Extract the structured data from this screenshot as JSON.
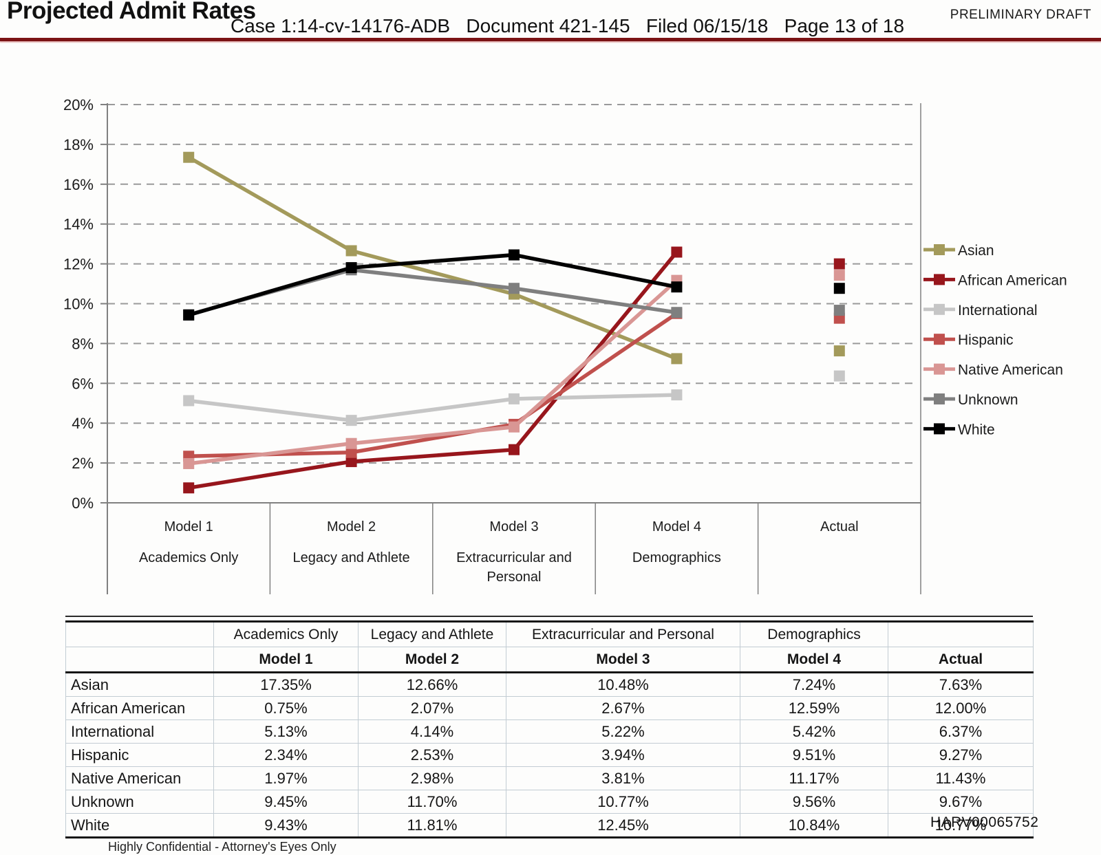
{
  "header": {
    "title": "Projected Admit Rates",
    "case_line": "Case 1:14-cv-14176-ADB   Document 421-145   Filed 06/15/18   Page 13 of 18",
    "draft_label": "PRELIMINARY DRAFT"
  },
  "footer": {
    "confidential_label": "Highly Confidential - Attorney's Eyes Only",
    "bates_number": "HARV00065752"
  },
  "chart_data": {
    "type": "line",
    "title": "",
    "xlabel": "",
    "ylabel": "",
    "ylim": [
      0,
      20
    ],
    "ytick_step": 2,
    "ytick_suffix": "%",
    "grid": "horizontal-dashed",
    "legend_position": "right",
    "categories": [
      {
        "label": "Model 1",
        "sub": [
          "Academics Only"
        ]
      },
      {
        "label": "Model 2",
        "sub": [
          "Legacy and Athlete"
        ]
      },
      {
        "label": "Model 3",
        "sub": [
          "Extracurricular and",
          "Personal"
        ]
      },
      {
        "label": "Model 4",
        "sub": [
          "Demographics"
        ]
      },
      {
        "label": "Actual",
        "sub": []
      }
    ],
    "series": [
      {
        "name": "Asian",
        "color": "#a39a5b",
        "values": [
          17.35,
          12.66,
          10.48,
          7.24
        ],
        "actual": 7.63
      },
      {
        "name": "African American",
        "color": "#97161c",
        "values": [
          0.75,
          2.07,
          2.67,
          12.59
        ],
        "actual": 12.0
      },
      {
        "name": "International",
        "color": "#c6c6c6",
        "values": [
          5.13,
          4.14,
          5.22,
          5.42
        ],
        "actual": 6.37
      },
      {
        "name": "Hispanic",
        "color": "#c0504d",
        "values": [
          2.34,
          2.53,
          3.94,
          9.51
        ],
        "actual": 9.27
      },
      {
        "name": "Native American",
        "color": "#d99694",
        "values": [
          1.97,
          2.98,
          3.81,
          11.17
        ],
        "actual": 11.43
      },
      {
        "name": "Unknown",
        "color": "#7f7f7f",
        "values": [
          9.45,
          11.7,
          10.77,
          9.56
        ],
        "actual": 9.67
      },
      {
        "name": "White",
        "color": "#000000",
        "values": [
          9.43,
          11.81,
          12.45,
          10.84
        ],
        "actual": 10.77
      }
    ]
  },
  "table": {
    "group_headers": [
      "",
      "Academics Only",
      "Legacy and Athlete",
      "Extracurricular and Personal",
      "Demographics",
      ""
    ],
    "col_headers": [
      "",
      "Model 1",
      "Model 2",
      "Model 3",
      "Model 4",
      "Actual"
    ],
    "rows": [
      {
        "label": "Asian",
        "values": [
          "17.35%",
          "12.66%",
          "10.48%",
          "7.24%",
          "7.63%"
        ]
      },
      {
        "label": "African American",
        "values": [
          "0.75%",
          "2.07%",
          "2.67%",
          "12.59%",
          "12.00%"
        ]
      },
      {
        "label": "International",
        "values": [
          "5.13%",
          "4.14%",
          "5.22%",
          "5.42%",
          "6.37%"
        ]
      },
      {
        "label": "Hispanic",
        "values": [
          "2.34%",
          "2.53%",
          "3.94%",
          "9.51%",
          "9.27%"
        ]
      },
      {
        "label": "Native American",
        "values": [
          "1.97%",
          "2.98%",
          "3.81%",
          "11.17%",
          "11.43%"
        ]
      },
      {
        "label": "Unknown",
        "values": [
          "9.45%",
          "11.70%",
          "10.77%",
          "9.56%",
          "9.67%"
        ]
      },
      {
        "label": "White",
        "values": [
          "9.43%",
          "11.81%",
          "12.45%",
          "10.84%",
          "10.77%"
        ]
      }
    ]
  }
}
